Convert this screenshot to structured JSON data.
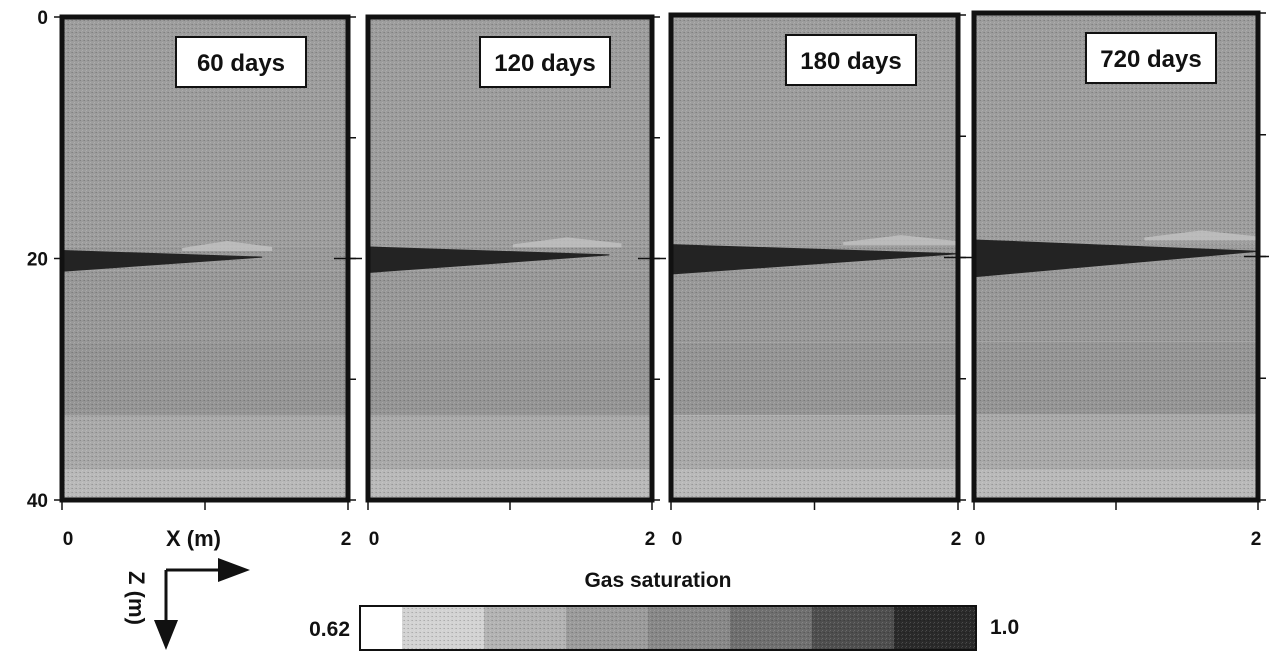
{
  "chart_data": {
    "type": "heatmap",
    "title": "",
    "xlabel": "X (m)",
    "ylabel": "Z (m)",
    "xlim": [
      0,
      2
    ],
    "ylim": [
      0,
      40
    ],
    "y_inverted": true,
    "x_ticks": [
      "0",
      "2"
    ],
    "y_ticks": [
      "0",
      "20",
      "40"
    ],
    "panels": [
      {
        "label": "60 days",
        "plume_thickness_m": 1.8,
        "plume_extent_x_m": 1.4,
        "plume_top_z_m": 19.3
      },
      {
        "label": "120 days",
        "plume_thickness_m": 2.2,
        "plume_extent_x_m": 1.7,
        "plume_top_z_m": 19.0
      },
      {
        "label": "180 days",
        "plume_thickness_m": 2.5,
        "plume_extent_x_m": 2.0,
        "plume_top_z_m": 18.9
      },
      {
        "label": "720 days",
        "plume_thickness_m": 3.1,
        "plume_extent_x_m": 2.0,
        "plume_top_z_m": 18.6
      }
    ],
    "colorbar": {
      "title": "Gas saturation",
      "min_label": "0.62",
      "max_label": "1.0",
      "min": 0.62,
      "max": 1.0,
      "colors": [
        "#ffffff",
        "#d3d3d3",
        "#b3b3b3",
        "#9b9b9b",
        "#888888",
        "#6f6f6f",
        "#4e4e4e",
        "#2a2a2a"
      ]
    }
  }
}
